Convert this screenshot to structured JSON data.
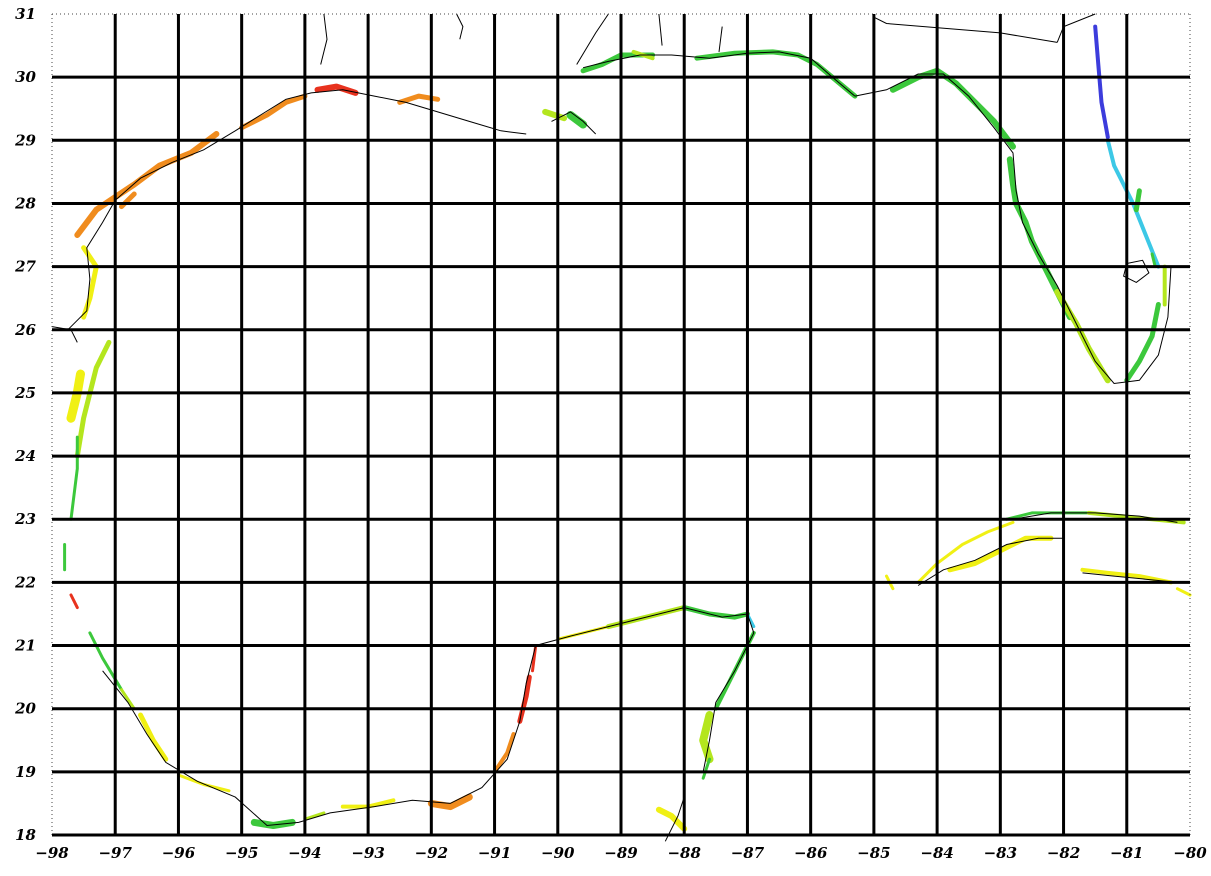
{
  "map": {
    "lon_range": [
      -98,
      -80
    ],
    "lat_range": [
      18,
      31
    ],
    "lon_ticks": [
      "-98",
      "-97",
      "-96",
      "-95",
      "-94",
      "-93",
      "-92",
      "-91",
      "-90",
      "-89",
      "-88",
      "-87",
      "-86",
      "-85",
      "-84",
      "-83",
      "-82",
      "-81",
      "-80"
    ],
    "lat_ticks": [
      "18",
      "19",
      "20",
      "21",
      "22",
      "23",
      "24",
      "25",
      "26",
      "27",
      "28",
      "29",
      "30",
      "31"
    ],
    "grid": true,
    "colors": {
      "background": "#ffffff",
      "grid": "#000000",
      "coast_outline": "#000000",
      "red": "#e8321e",
      "orange": "#f08c1e",
      "yellow": "#f0f014",
      "yellow_green": "#b4e61e",
      "green": "#3cc83c",
      "cyan": "#3cc8e6",
      "blue": "#3c3cdc"
    }
  }
}
